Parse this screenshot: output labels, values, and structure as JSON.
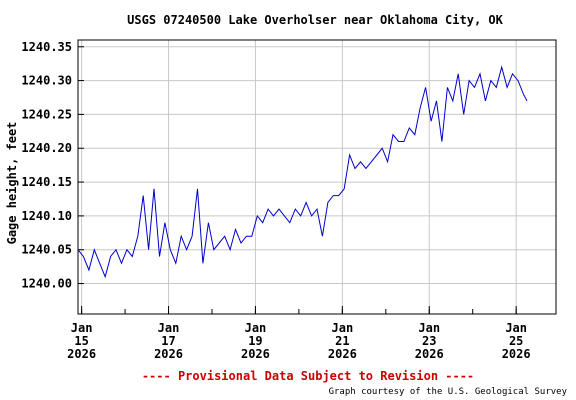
{
  "chart_data": {
    "type": "line",
    "title": "USGS 07240500 Lake Overholser near Oklahoma City, OK",
    "ylabel": "Gage height, feet",
    "xlabel": "",
    "ylim": [
      1239.955,
      1240.36
    ],
    "xlim": [
      "2026-01-14 22:00",
      "2026-01-25 22:00"
    ],
    "y_ticks": [
      "1240.35",
      "1240.30",
      "1240.25",
      "1240.20",
      "1240.15",
      "1240.10",
      "1240.05",
      "1240.00"
    ],
    "x_ticks": [
      {
        "month": "Jan",
        "day": "15",
        "year": "2026"
      },
      {
        "month": "Jan",
        "day": "17",
        "year": "2026"
      },
      {
        "month": "Jan",
        "day": "19",
        "year": "2026"
      },
      {
        "month": "Jan",
        "day": "21",
        "year": "2026"
      },
      {
        "month": "Jan",
        "day": "23",
        "year": "2026"
      },
      {
        "month": "Jan",
        "day": "25",
        "year": "2026"
      }
    ],
    "grid": true,
    "line_color": "#0000cc",
    "series": [
      {
        "name": "",
        "x": [
          "2026-01-14 22:00",
          "2026-01-15 01:00",
          "2026-01-15 04:00",
          "2026-01-15 07:00",
          "2026-01-15 10:00",
          "2026-01-15 13:00",
          "2026-01-15 16:00",
          "2026-01-15 19:00",
          "2026-01-15 22:00",
          "2026-01-16 01:00",
          "2026-01-16 04:00",
          "2026-01-16 07:00",
          "2026-01-16 10:00",
          "2026-01-16 13:00",
          "2026-01-16 16:00",
          "2026-01-16 19:00",
          "2026-01-16 22:00",
          "2026-01-17 01:00",
          "2026-01-17 04:00",
          "2026-01-17 07:00",
          "2026-01-17 10:00",
          "2026-01-17 13:00",
          "2026-01-17 16:00",
          "2026-01-17 19:00",
          "2026-01-17 22:00",
          "2026-01-18 01:00",
          "2026-01-18 04:00",
          "2026-01-18 07:00",
          "2026-01-18 10:00",
          "2026-01-18 13:00",
          "2026-01-18 16:00",
          "2026-01-18 19:00",
          "2026-01-18 22:00",
          "2026-01-19 01:00",
          "2026-01-19 04:00",
          "2026-01-19 07:00",
          "2026-01-19 10:00",
          "2026-01-19 13:00",
          "2026-01-19 16:00",
          "2026-01-19 19:00",
          "2026-01-19 22:00",
          "2026-01-20 01:00",
          "2026-01-20 04:00",
          "2026-01-20 07:00",
          "2026-01-20 10:00",
          "2026-01-20 13:00",
          "2026-01-20 16:00",
          "2026-01-20 19:00",
          "2026-01-20 22:00",
          "2026-01-21 01:00",
          "2026-01-21 04:00",
          "2026-01-21 07:00",
          "2026-01-21 10:00",
          "2026-01-21 13:00",
          "2026-01-21 16:00",
          "2026-01-21 19:00",
          "2026-01-21 22:00",
          "2026-01-22 01:00",
          "2026-01-22 04:00",
          "2026-01-22 07:00",
          "2026-01-22 10:00",
          "2026-01-22 13:00",
          "2026-01-22 16:00",
          "2026-01-22 19:00",
          "2026-01-22 22:00",
          "2026-01-23 01:00",
          "2026-01-23 04:00",
          "2026-01-23 07:00",
          "2026-01-23 10:00",
          "2026-01-23 13:00",
          "2026-01-23 16:00",
          "2026-01-23 19:00",
          "2026-01-23 22:00",
          "2026-01-24 01:00",
          "2026-01-24 04:00",
          "2026-01-24 07:00",
          "2026-01-24 10:00",
          "2026-01-24 13:00",
          "2026-01-24 16:00",
          "2026-01-24 19:00",
          "2026-01-24 22:00",
          "2026-01-25 01:00",
          "2026-01-25 04:00",
          "2026-01-25 06:00"
        ],
        "values": [
          1240.05,
          1240.04,
          1240.02,
          1240.05,
          1240.03,
          1240.01,
          1240.04,
          1240.05,
          1240.03,
          1240.05,
          1240.04,
          1240.07,
          1240.13,
          1240.05,
          1240.14,
          1240.04,
          1240.09,
          1240.05,
          1240.03,
          1240.07,
          1240.05,
          1240.07,
          1240.14,
          1240.03,
          1240.09,
          1240.05,
          1240.06,
          1240.07,
          1240.05,
          1240.08,
          1240.06,
          1240.07,
          1240.07,
          1240.1,
          1240.09,
          1240.11,
          1240.1,
          1240.11,
          1240.1,
          1240.09,
          1240.11,
          1240.1,
          1240.12,
          1240.1,
          1240.11,
          1240.07,
          1240.12,
          1240.13,
          1240.13,
          1240.14,
          1240.19,
          1240.17,
          1240.18,
          1240.17,
          1240.18,
          1240.19,
          1240.2,
          1240.18,
          1240.22,
          1240.21,
          1240.21,
          1240.23,
          1240.22,
          1240.26,
          1240.29,
          1240.24,
          1240.27,
          1240.21,
          1240.29,
          1240.27,
          1240.31,
          1240.25,
          1240.3,
          1240.29,
          1240.31,
          1240.27,
          1240.3,
          1240.29,
          1240.32,
          1240.29,
          1240.31,
          1240.3,
          1240.28,
          1240.27
        ]
      }
    ]
  },
  "footer": {
    "provisional": "---- Provisional Data Subject to Revision ----",
    "provisional_color": "#cc0000",
    "credit": "Graph courtesy of the U.S. Geological Survey"
  }
}
